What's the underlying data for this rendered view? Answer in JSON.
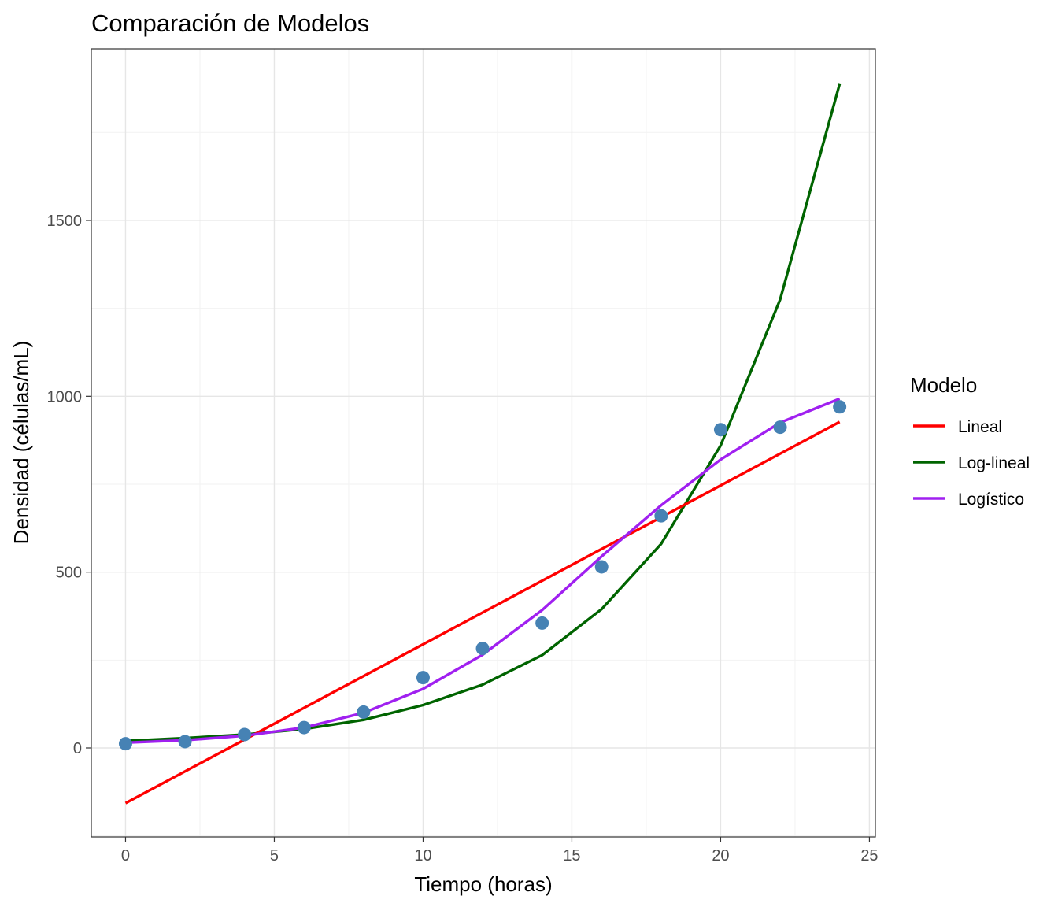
{
  "chart_data": {
    "type": "line",
    "title": "Comparación de Modelos",
    "xlabel": "Tiempo (horas)",
    "ylabel": "Densidad (células/mL)",
    "xlim": [
      -1.15,
      25.2
    ],
    "ylim": [
      -253,
      1988
    ],
    "x_ticks": [
      0,
      5,
      10,
      15,
      20,
      25
    ],
    "y_ticks": [
      0,
      500,
      1000,
      1500
    ],
    "grid": true,
    "legend": {
      "title": "Modelo",
      "position": "right"
    },
    "points": {
      "color": "#4682b4",
      "x": [
        0,
        2,
        4,
        6,
        8,
        10,
        12,
        14,
        16,
        18,
        20,
        22,
        24
      ],
      "y": [
        12,
        18,
        38,
        58,
        102,
        200,
        283,
        355,
        515,
        660,
        905,
        912,
        970
      ]
    },
    "series": [
      {
        "name": "Lineal",
        "color": "#ff0000",
        "x": [
          0,
          24
        ],
        "y": [
          -157,
          927
        ]
      },
      {
        "name": "Log-lineal",
        "color": "#006400",
        "x": [
          0,
          2,
          4,
          6,
          8,
          10,
          12,
          14,
          16,
          18,
          20,
          22,
          24
        ],
        "y": [
          20,
          28,
          38,
          54,
          80,
          122,
          180,
          264,
          395,
          580,
          860,
          1275,
          1888
        ]
      },
      {
        "name": "Logístico",
        "color": "#a020f0",
        "x": [
          0,
          2,
          4,
          6,
          8,
          10,
          12,
          14,
          16,
          18,
          20,
          22,
          24
        ],
        "y": [
          15,
          22,
          35,
          58,
          100,
          168,
          265,
          392,
          545,
          690,
          820,
          925,
          993
        ]
      }
    ]
  }
}
